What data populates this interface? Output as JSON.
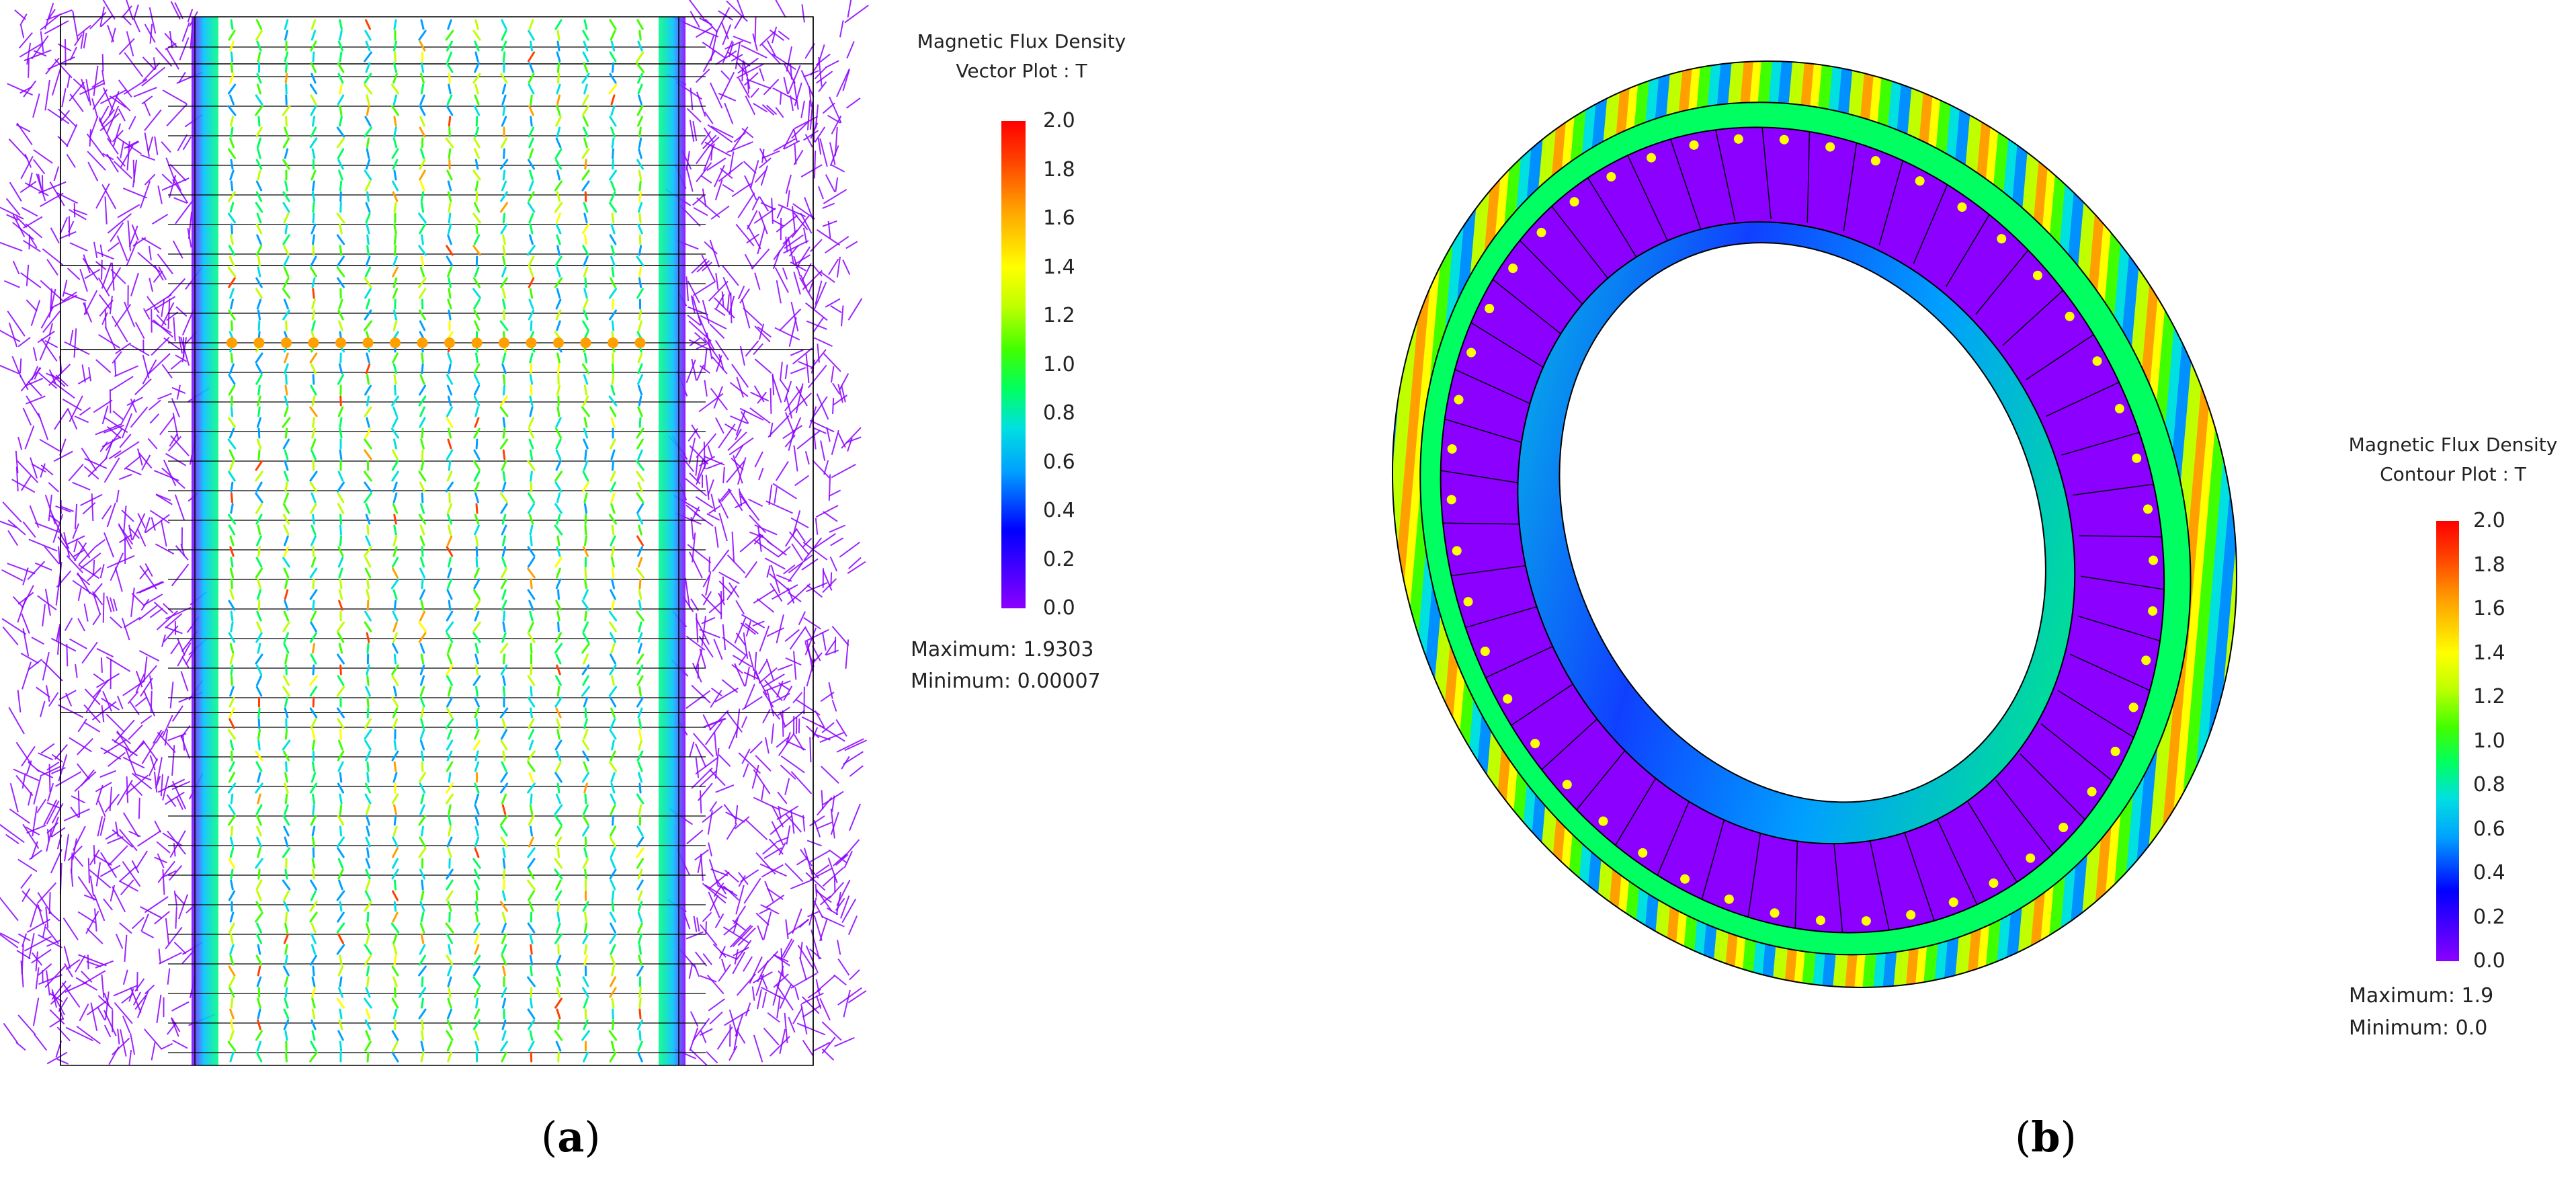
{
  "panel_a": {
    "legend": {
      "title_line1": "Magnetic Flux Density",
      "title_line2": "Vector Plot : T",
      "ticks": [
        "2.0",
        "1.8",
        "1.6",
        "1.4",
        "1.2",
        "1.0",
        "0.8",
        "0.6",
        "0.4",
        "0.2",
        "0.0"
      ],
      "maximum": "Maximum: 1.9303",
      "minimum": "Minimum: 0.00007"
    },
    "caption": {
      "open": "(",
      "letter": "a",
      "close": ")"
    }
  },
  "panel_b": {
    "legend": {
      "title_line1": "Magnetic Flux Density",
      "title_line2": "Contour Plot : T",
      "ticks": [
        "2.0",
        "1.8",
        "1.6",
        "1.4",
        "1.2",
        "1.0",
        "0.8",
        "0.6",
        "0.4",
        "0.2",
        "0.0"
      ],
      "maximum": "Maximum: 1.9",
      "minimum": "Minimum: 0.0"
    },
    "caption": {
      "open": "(",
      "letter": "b",
      "close": ")"
    }
  },
  "colors": {
    "low": "#8b00ff",
    "scale": [
      "#8b00ff",
      "#0000ff",
      "#00a0ff",
      "#00e0e0",
      "#00ff60",
      "#40ff00",
      "#c0ff00",
      "#ffff00",
      "#ffa000",
      "#ff4000",
      "#ff0000"
    ],
    "background": "#ffffff"
  }
}
